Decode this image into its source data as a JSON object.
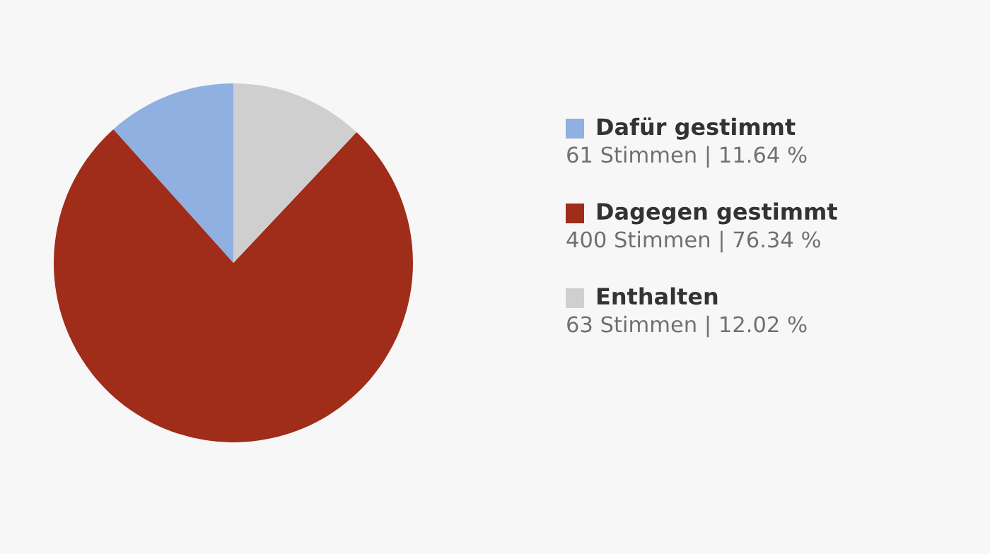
{
  "chart_data": {
    "type": "pie",
    "categories": [
      "Dafür gestimmt",
      "Dagegen gestimmt",
      "Enthalten"
    ],
    "values": [
      61,
      400,
      63
    ],
    "colors": [
      "#8fb0e0",
      "#a02c1a",
      "#cfcfcf"
    ],
    "value_labels": [
      "61 Stimmen | 11.64 %",
      "400 Stimmen | 76.34 %",
      "63 Stimmen | 12.02 %"
    ],
    "legend": "right"
  }
}
